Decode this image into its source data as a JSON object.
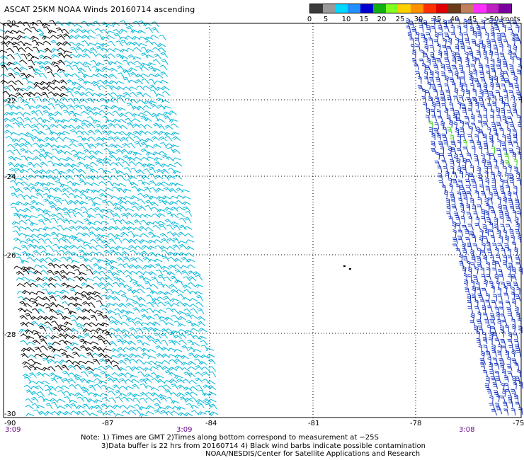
{
  "title": "ASCAT 25KM NOAA Winds 20160714 ascending",
  "legend": {
    "swatches": [
      "#3a3a3a",
      "#9a9a9a",
      "#00d8ff",
      "#2090ff",
      "#0000d0",
      "#10b010",
      "#80ff20",
      "#ffd000",
      "#ff9000",
      "#ff3000",
      "#e00000",
      "#6a3a1a",
      "#c08060",
      "#ff30ff",
      "#c020c0",
      "#7a00a0"
    ],
    "labels": [
      "0",
      "5",
      "10",
      "15",
      "20",
      "25",
      "30",
      "35",
      "40",
      "45",
      ">50 knots"
    ]
  },
  "axes": {
    "x_ticks": [
      "-90",
      "-87",
      "-84",
      "-81",
      "-78",
      "-75"
    ],
    "y_ticks": [
      "-20",
      "-22",
      "-24",
      "-26",
      "-28",
      "-30"
    ]
  },
  "times": [
    "3:09",
    "3:09",
    "3:08"
  ],
  "notes": [
    "Note: 1) Times are GMT 2)Times along bottom correspond to measurement at −25S",
    "3)Data buffer is 22 hrs from 20160714 4) Black wind barbs indicate possible contamination",
    "NOAA/NESDIS/Center for Satellite Applications and Research"
  ],
  "colors": {
    "barb_light": "#00b8d8",
    "barb_dark": "#1030c0",
    "barb_strong": "#40d020",
    "barb_contaminated": "#000000"
  }
}
